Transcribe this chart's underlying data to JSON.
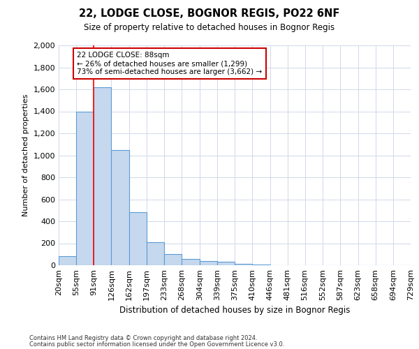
{
  "title1": "22, LODGE CLOSE, BOGNOR REGIS, PO22 6NF",
  "title2": "Size of property relative to detached houses in Bognor Regis",
  "xlabel": "Distribution of detached houses by size in Bognor Regis",
  "ylabel": "Number of detached properties",
  "footer1": "Contains HM Land Registry data © Crown copyright and database right 2024.",
  "footer2": "Contains public sector information licensed under the Open Government Licence v3.0.",
  "bar_values": [
    80,
    1400,
    1620,
    1050,
    480,
    210,
    100,
    55,
    40,
    30,
    15,
    5,
    0,
    0,
    0,
    0,
    0,
    0,
    0,
    0
  ],
  "bin_edges": [
    20,
    55,
    91,
    126,
    162,
    197,
    233,
    268,
    304,
    339,
    375,
    410,
    446,
    481,
    516,
    552,
    587,
    623,
    658,
    694,
    729
  ],
  "tick_labels": [
    "20sqm",
    "55sqm",
    "91sqm",
    "126sqm",
    "162sqm",
    "197sqm",
    "233sqm",
    "268sqm",
    "304sqm",
    "339sqm",
    "375sqm",
    "410sqm",
    "446sqm",
    "481sqm",
    "516sqm",
    "552sqm",
    "587sqm",
    "623sqm",
    "658sqm",
    "694sqm",
    "729sqm"
  ],
  "bar_color": "#c5d8ee",
  "bar_edge_color": "#5b9bd5",
  "bar_edge_width": 0.8,
  "red_line_x": 91,
  "ylim": [
    0,
    2000
  ],
  "yticks": [
    0,
    200,
    400,
    600,
    800,
    1000,
    1200,
    1400,
    1600,
    1800,
    2000
  ],
  "annotation_text": "22 LODGE CLOSE: 88sqm\n← 26% of detached houses are smaller (1,299)\n73% of semi-detached houses are larger (3,662) →",
  "annotation_box_color": "#ffffff",
  "annotation_box_edge": "#cc0000",
  "grid_color": "#d0d8e8",
  "background_color": "#ffffff",
  "fig_width": 6.0,
  "fig_height": 5.0,
  "dpi": 100
}
